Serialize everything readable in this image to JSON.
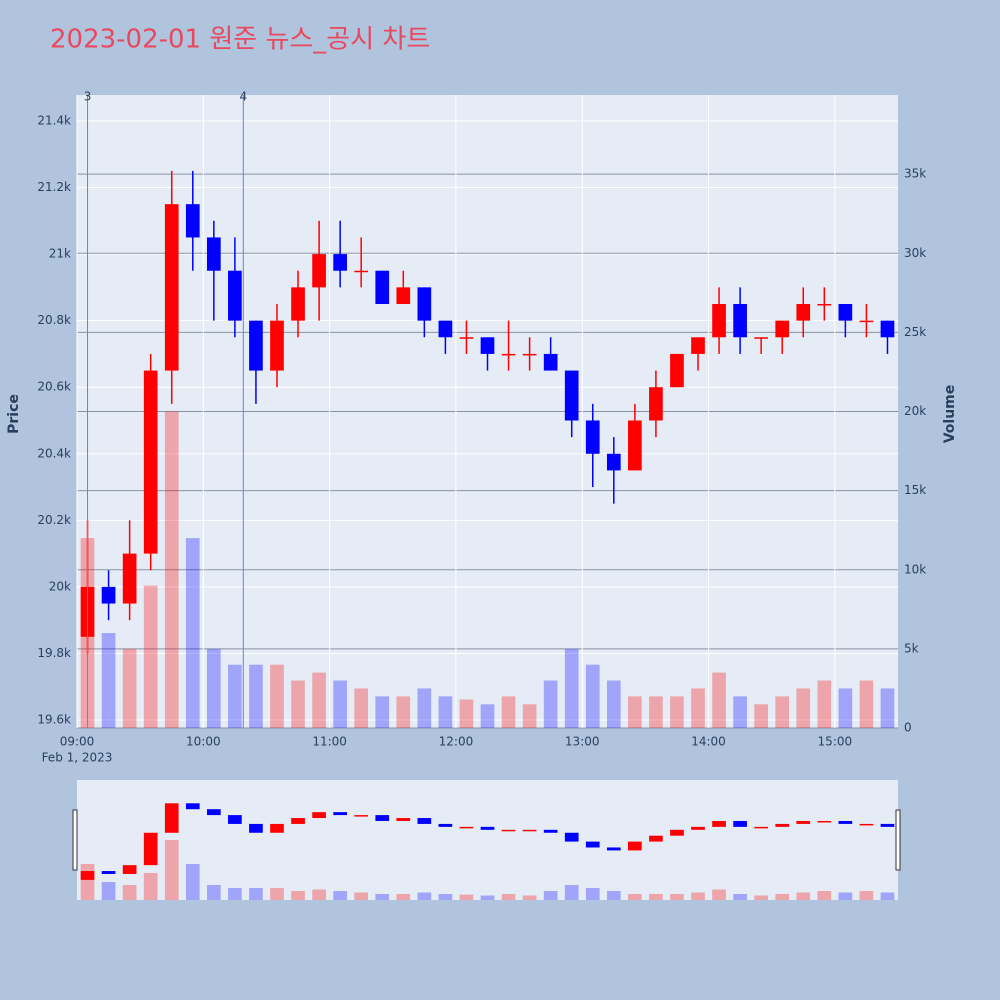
{
  "chart_data": {
    "type": "candlestick",
    "title": "2023-02-01 원준 뉴스_공시 차트",
    "y_label": "Price",
    "y2_label": "Volume",
    "x_date_label": "Feb 1, 2023",
    "increasing_color": "#ff0000",
    "decreasing_color": "#0000ff",
    "xlim": [
      "09:00",
      "15:30"
    ],
    "xticks": [
      "09:00",
      "10:00",
      "11:00",
      "12:00",
      "13:00",
      "14:00",
      "15:00"
    ],
    "ylim": [
      19576,
      21478
    ],
    "yticks": [
      {
        "value": 19600,
        "label": "19.6k"
      },
      {
        "value": 19800,
        "label": "19.8k"
      },
      {
        "value": 20000,
        "label": "20k"
      },
      {
        "value": 20200,
        "label": "20.2k"
      },
      {
        "value": 20400,
        "label": "20.4k"
      },
      {
        "value": 20600,
        "label": "20.6k"
      },
      {
        "value": 20800,
        "label": "20.8k"
      },
      {
        "value": 21000,
        "label": "21k"
      },
      {
        "value": 21200,
        "label": "21.2k"
      },
      {
        "value": 21400,
        "label": "21.4k"
      }
    ],
    "y2lim": [
      0,
      40000
    ],
    "y2ticks": [
      0,
      {
        "value": 5000,
        "label": "5k"
      },
      {
        "value": 10000,
        "label": "10k"
      },
      {
        "value": 15000,
        "label": "15k"
      },
      {
        "value": 20000,
        "label": "20k"
      },
      {
        "value": 25000,
        "label": "25k"
      },
      {
        "value": 30000,
        "label": "30k"
      },
      {
        "value": 35000,
        "label": "35k"
      }
    ],
    "vlines": [
      {
        "x": "09:05",
        "label": "3"
      },
      {
        "x": "10:19",
        "label": "4"
      }
    ],
    "x": [
      "09:00",
      "09:10",
      "09:20",
      "09:30",
      "09:40",
      "09:50",
      "10:00",
      "10:10",
      "10:20",
      "10:30",
      "10:40",
      "10:50",
      "11:00",
      "11:10",
      "11:20",
      "11:30",
      "11:40",
      "11:50",
      "12:00",
      "12:10",
      "12:20",
      "12:30",
      "12:40",
      "12:50",
      "13:00",
      "13:10",
      "13:20",
      "13:30",
      "13:40",
      "13:50",
      "14:00",
      "14:10",
      "14:20",
      "14:30",
      "14:40",
      "14:50",
      "15:00",
      "15:10",
      "15:20"
    ],
    "open": [
      19850,
      20000,
      19950,
      20100,
      20650,
      21150,
      21050,
      20950,
      20800,
      20650,
      20800,
      20900,
      21000,
      20950,
      20950,
      20850,
      20900,
      20800,
      20750,
      20750,
      20700,
      20700,
      20700,
      20650,
      20500,
      20400,
      20350,
      20500,
      20600,
      20700,
      20750,
      20850,
      20750,
      20750,
      20800,
      20850,
      20850,
      20800,
      20800
    ],
    "high": [
      20200,
      20050,
      20200,
      20700,
      21250,
      21250,
      21100,
      21050,
      20800,
      20850,
      20950,
      21100,
      21100,
      21050,
      20950,
      20950,
      20900,
      20800,
      20800,
      20750,
      20800,
      20750,
      20750,
      20650,
      20550,
      20450,
      20550,
      20650,
      20700,
      20750,
      20900,
      20900,
      20750,
      20800,
      20900,
      20900,
      20850,
      20850,
      20800
    ],
    "low": [
      19800,
      19900,
      19900,
      20050,
      20550,
      20950,
      20800,
      20750,
      20550,
      20600,
      20750,
      20800,
      20900,
      20900,
      20850,
      20850,
      20750,
      20700,
      20700,
      20650,
      20650,
      20650,
      20650,
      20450,
      20300,
      20250,
      20350,
      20450,
      20600,
      20650,
      20700,
      20700,
      20700,
      20700,
      20750,
      20800,
      20750,
      20750,
      20700
    ],
    "close": [
      20000,
      19950,
      20100,
      20650,
      21150,
      21050,
      20950,
      20800,
      20650,
      20800,
      20900,
      21000,
      20950,
      20950,
      20850,
      20900,
      20800,
      20750,
      20750,
      20700,
      20700,
      20700,
      20650,
      20500,
      20400,
      20350,
      20500,
      20600,
      20700,
      20750,
      20850,
      20750,
      20750,
      20800,
      20850,
      20850,
      20800,
      20800,
      20750
    ],
    "volume": [
      12000,
      6000,
      5000,
      9000,
      20000,
      12000,
      5000,
      4000,
      4000,
      4000,
      3000,
      3500,
      3000,
      2500,
      2000,
      2000,
      2500,
      2000,
      1800,
      1500,
      2000,
      1500,
      3000,
      5000,
      4000,
      3000,
      2000,
      2000,
      2000,
      2500,
      3500,
      2000,
      1500,
      2000,
      2500,
      3000,
      2500,
      3000,
      2500
    ]
  }
}
